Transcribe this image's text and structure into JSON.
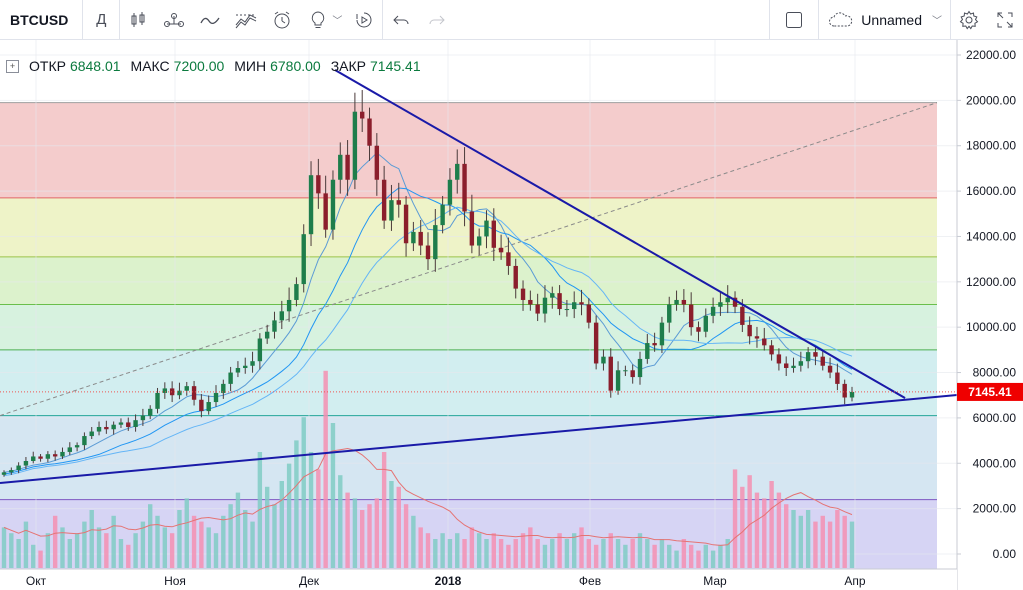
{
  "toolbar": {
    "symbol": "BTCUSD",
    "interval": "Д",
    "layout_name": "Unnamed"
  },
  "legend": {
    "open_label": "ОТКР",
    "open": "6848.01",
    "high_label": "МАКС",
    "high": "7200.00",
    "low_label": "МИН",
    "low": "6780.00",
    "close_label": "ЗАКР",
    "close": "7145.41"
  },
  "price_badge": "7145.41",
  "colors": {
    "up": "#26a69a",
    "down": "#ef5350",
    "trend_line": "#1a1aa8",
    "ma": "#2196f3",
    "badge": "#ef0000"
  },
  "chart_data": {
    "type": "candlestick",
    "y_ticks": [
      "22000.00",
      "20000.00",
      "18000.00",
      "16000.00",
      "14000.00",
      "12000.00",
      "10000.00",
      "8000.00",
      "6000.00",
      "4000.00",
      "2000.00",
      "0.00"
    ],
    "x_ticks": [
      {
        "label": "Окт",
        "bold": false
      },
      {
        "label": "Ноя",
        "bold": false
      },
      {
        "label": "Дек",
        "bold": false
      },
      {
        "label": "2018",
        "bold": true
      },
      {
        "label": "Фев",
        "bold": false
      },
      {
        "label": "Мар",
        "bold": false
      },
      {
        "label": "Апр",
        "bold": false
      }
    ],
    "ylim": [
      0,
      22000
    ],
    "fib_levels": [
      19900,
      15700,
      13100,
      11000,
      9000,
      6100
    ],
    "last_price": 7145.41,
    "close_series": [
      3600,
      3700,
      3900,
      4100,
      4300,
      4200,
      4400,
      4300,
      4500,
      4700,
      4800,
      5200,
      5400,
      5600,
      5500,
      5700,
      5800,
      5600,
      5900,
      6100,
      6400,
      7100,
      7300,
      7000,
      7200,
      7400,
      6800,
      6300,
      6700,
      7100,
      7500,
      8000,
      8200,
      8300,
      8500,
      9500,
      9800,
      10300,
      10700,
      11200,
      11900,
      14100,
      16700,
      15900,
      14300,
      16500,
      17600,
      16500,
      19500,
      19200,
      18000,
      16500,
      14700,
      15600,
      15400,
      13700,
      14200,
      13600,
      13000,
      14500,
      15400,
      16500,
      17200,
      15100,
      13600,
      14000,
      14700,
      13500,
      13300,
      12700,
      11700,
      11200,
      11000,
      10600,
      11300,
      11500,
      10800,
      10800,
      11100,
      11000,
      10200,
      8400,
      8700,
      7200,
      8100,
      8100,
      7800,
      8600,
      9300,
      9200,
      10200,
      11000,
      11200,
      11000,
      10000,
      9800,
      10500,
      10900,
      11100,
      11300,
      10900,
      10100,
      9600,
      9500,
      9200,
      8800,
      8400,
      8200,
      8300,
      8500,
      8900,
      8700,
      8300,
      8000,
      7500,
      6900,
      7145
    ],
    "volume_series": [
      0.7,
      0.6,
      0.5,
      0.8,
      0.4,
      0.3,
      0.6,
      0.9,
      0.7,
      0.5,
      0.6,
      0.8,
      1.0,
      0.7,
      0.6,
      0.9,
      0.5,
      0.4,
      0.6,
      0.8,
      1.1,
      0.9,
      0.7,
      0.6,
      1.0,
      1.2,
      0.9,
      0.8,
      0.7,
      0.6,
      0.9,
      1.1,
      1.3,
      1.0,
      0.8,
      2.0,
      1.4,
      1.1,
      1.5,
      1.8,
      2.2,
      2.6,
      2.0,
      1.7,
      3.4,
      2.5,
      1.6,
      1.3,
      1.2,
      1.0,
      1.1,
      1.2,
      2.0,
      1.5,
      1.4,
      1.1,
      0.9,
      0.7,
      0.6,
      0.5,
      0.6,
      0.5,
      0.6,
      0.5,
      0.7,
      0.6,
      0.5,
      0.6,
      0.5,
      0.4,
      0.5,
      0.6,
      0.7,
      0.5,
      0.4,
      0.5,
      0.6,
      0.5,
      0.6,
      0.7,
      0.5,
      0.4,
      0.5,
      0.6,
      0.5,
      0.4,
      0.5,
      0.6,
      0.5,
      0.4,
      0.5,
      0.4,
      0.3,
      0.5,
      0.4,
      0.3,
      0.4,
      0.3,
      0.4,
      0.5,
      1.7,
      1.4,
      1.6,
      1.3,
      1.2,
      1.5,
      1.3,
      1.1,
      1.0,
      0.9,
      1.0,
      0.8,
      0.9,
      0.8,
      1.0,
      0.9,
      0.8
    ]
  }
}
